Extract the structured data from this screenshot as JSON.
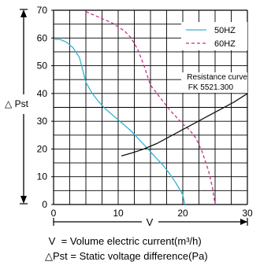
{
  "chart_data": {
    "type": "line",
    "x_axis": {
      "symbol": "V",
      "range": [
        0,
        30
      ],
      "ticks": [
        "0",
        "10",
        "20",
        "30"
      ]
    },
    "y_axis": {
      "symbol": "△ Pst",
      "range": [
        0,
        70
      ],
      "ticks": [
        "0",
        "10",
        "20",
        "30",
        "40",
        "50",
        "60",
        "70"
      ]
    },
    "grid": true,
    "legend_position": "top-right",
    "series": [
      {
        "name": "50HZ",
        "color": "#33b3d6",
        "dash": "solid",
        "points": [
          [
            0,
            59.5
          ],
          [
            1,
            59.5
          ],
          [
            2,
            58.5
          ],
          [
            3,
            56.5
          ],
          [
            4,
            53
          ],
          [
            5,
            44
          ],
          [
            6,
            40
          ],
          [
            7,
            37
          ],
          [
            8,
            34.5
          ],
          [
            9,
            32.5
          ],
          [
            10,
            30.5
          ],
          [
            11,
            28.5
          ],
          [
            12,
            26.5
          ],
          [
            13,
            24
          ],
          [
            14,
            21.5
          ],
          [
            15,
            19
          ],
          [
            16,
            16.5
          ],
          [
            17,
            14
          ],
          [
            18,
            11
          ],
          [
            19,
            7.5
          ],
          [
            20,
            3.5
          ],
          [
            20.3,
            0
          ]
        ]
      },
      {
        "name": "60HZ",
        "color": "#cc2a8c",
        "dash": "dashed",
        "points": [
          [
            5,
            69.5
          ],
          [
            6,
            68.5
          ],
          [
            7,
            67.5
          ],
          [
            8,
            66.5
          ],
          [
            9,
            65.5
          ],
          [
            10,
            64
          ],
          [
            11,
            62.5
          ],
          [
            12,
            60
          ],
          [
            13,
            56
          ],
          [
            14,
            50
          ],
          [
            15,
            43
          ],
          [
            16,
            40
          ],
          [
            17,
            37
          ],
          [
            18,
            34
          ],
          [
            19,
            31.5
          ],
          [
            20,
            29
          ],
          [
            21,
            27
          ],
          [
            22,
            24
          ],
          [
            23,
            19
          ],
          [
            24,
            12
          ],
          [
            24.6,
            6
          ],
          [
            25,
            0
          ]
        ]
      },
      {
        "name": "Resistance curve FK 5521.300",
        "color": "#111111",
        "dash": "solid",
        "points": [
          [
            10.5,
            17.5
          ],
          [
            12,
            18.5
          ],
          [
            14,
            20
          ],
          [
            16,
            22
          ],
          [
            18,
            24.5
          ],
          [
            20,
            27
          ],
          [
            22,
            29.5
          ],
          [
            24,
            32
          ],
          [
            26,
            34.5
          ],
          [
            28,
            37
          ],
          [
            30,
            40
          ]
        ]
      }
    ],
    "legend": [
      {
        "label": "50HZ",
        "color": "#33b3d6",
        "dash": "solid"
      },
      {
        "label": "60HZ",
        "color": "#cc2a8c",
        "dash": "dashed"
      }
    ],
    "annotation": {
      "line1": "Resistance curve",
      "line2": "FK 5521.300"
    }
  },
  "captions": [
    {
      "symbol": "V",
      "text": "= Volume electric current(m³/h)"
    },
    {
      "symbol": "△Pst",
      "text": "= Static voltage difference(Pa)"
    }
  ]
}
